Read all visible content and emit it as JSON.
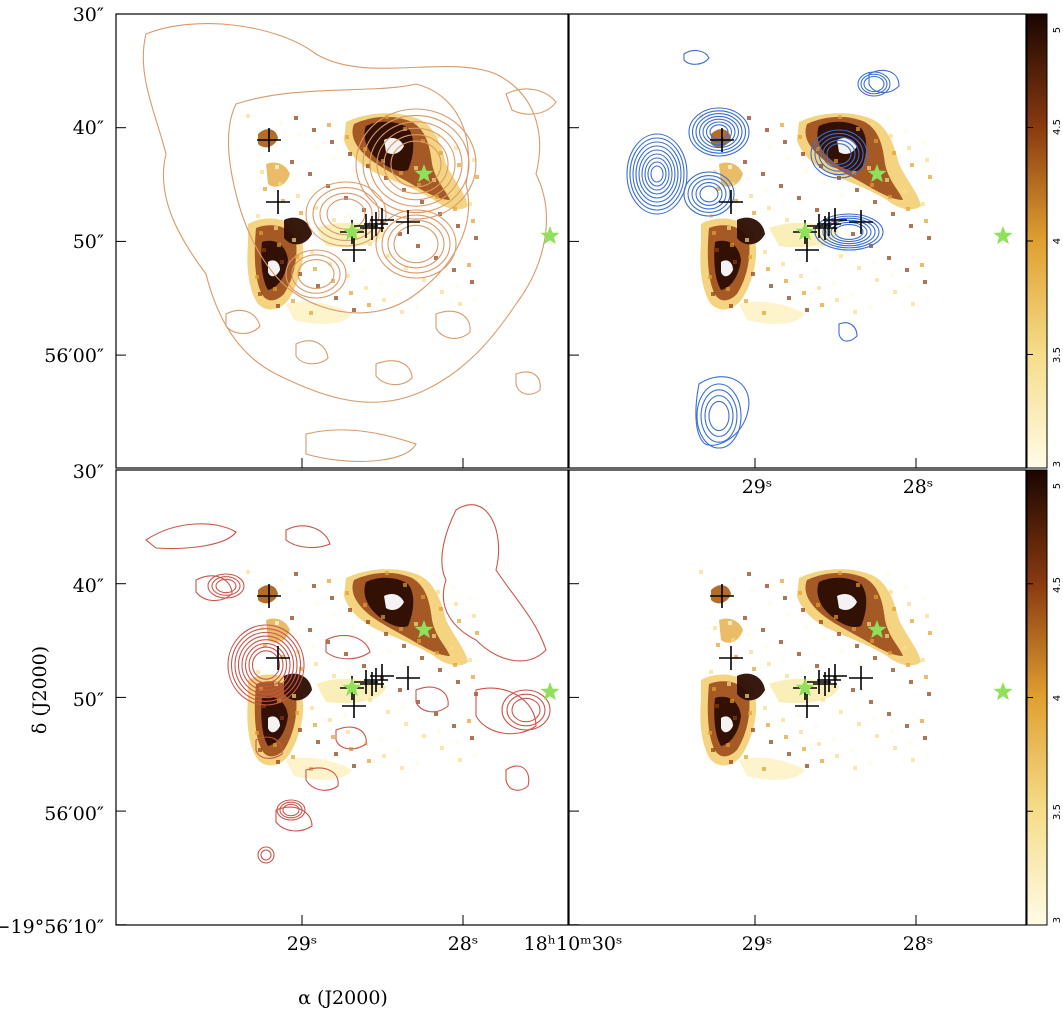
{
  "figure": {
    "xlabel": "α (J2000)",
    "ylabel": "δ (J2000)"
  },
  "chart_data": [
    {
      "type": "heatmap",
      "panel": "top-left",
      "overlay": "contours",
      "contour_color": "#d99a6a",
      "y_tick_labels": [
        "30″",
        "40″",
        "50″",
        "56′00″"
      ],
      "x_tick_labels": [],
      "colorbar": null
    },
    {
      "type": "heatmap",
      "panel": "top-right",
      "overlay": "contours",
      "contour_color": "#3a6fd0",
      "x_tick_labels": [
        "29ˢ",
        "28ˢ"
      ],
      "colorbar": {
        "range": [
          3,
          5
        ],
        "ticks": [
          "3",
          "3.5",
          "4",
          "4.5",
          "5"
        ]
      }
    },
    {
      "type": "heatmap",
      "panel": "bottom-left",
      "overlay": "contours",
      "contour_color": "#c9564a",
      "y_tick_labels": [
        "30″",
        "40″",
        "50″",
        "56′00″",
        "−19°56′10″"
      ],
      "x_tick_labels": [
        "29ˢ",
        "28ˢ",
        "18ʰ10ᵐ30ˢ"
      ]
    },
    {
      "type": "heatmap",
      "panel": "bottom-right",
      "overlay": "none",
      "x_tick_labels": [
        "29ˢ",
        "28ˢ"
      ],
      "colorbar": {
        "range": [
          3,
          5
        ],
        "ticks": [
          "3",
          "3.5",
          "4",
          "4.5",
          "5"
        ]
      }
    }
  ],
  "markers": {
    "cross_color": "#000000",
    "star_color": "#8fe05a"
  }
}
